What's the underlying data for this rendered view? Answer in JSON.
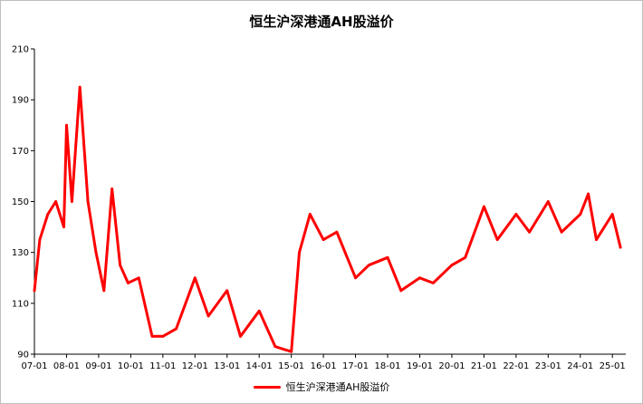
{
  "chart_data": {
    "type": "line",
    "title": "恒生沪深港通AH股溢价",
    "xlabel": "",
    "ylabel": "",
    "ylim": [
      90,
      210
    ],
    "yticks": [
      90,
      110,
      130,
      150,
      170,
      190,
      210
    ],
    "x_start": "07-01",
    "x_end": "25-06",
    "categories": [
      "07-01",
      "08-01",
      "09-01",
      "10-01",
      "11-01",
      "12-01",
      "13-01",
      "14-01",
      "15-01",
      "16-01",
      "17-01",
      "18-01",
      "19-01",
      "20-01",
      "21-01",
      "22-01",
      "23-01",
      "24-01",
      "25-01"
    ],
    "grid": false,
    "legend_position": "bottom",
    "series": [
      {
        "name": "恒生沪深港通AH股溢价",
        "color": "#ff0000",
        "x": [
          "07-01",
          "07-03",
          "07-06",
          "07-09",
          "07-12",
          "08-01",
          "08-03",
          "08-06",
          "08-09",
          "08-12",
          "09-03",
          "09-06",
          "09-09",
          "09-12",
          "10-04",
          "10-09",
          "11-01",
          "11-06",
          "12-01",
          "12-06",
          "13-01",
          "13-06",
          "14-01",
          "14-07",
          "14-10",
          "15-01",
          "15-04",
          "15-08",
          "16-01",
          "16-06",
          "17-01",
          "17-06",
          "18-01",
          "18-06",
          "19-01",
          "19-06",
          "20-01",
          "20-06",
          "21-01",
          "21-06",
          "22-01",
          "22-06",
          "23-01",
          "23-06",
          "24-01",
          "24-04",
          "24-07",
          "25-01",
          "25-04"
        ],
        "values": [
          115,
          135,
          145,
          150,
          140,
          180,
          150,
          195,
          150,
          130,
          115,
          155,
          125,
          118,
          120,
          97,
          97,
          100,
          120,
          105,
          115,
          97,
          107,
          93,
          92,
          91,
          130,
          145,
          135,
          138,
          120,
          125,
          128,
          115,
          120,
          118,
          125,
          128,
          148,
          135,
          145,
          138,
          150,
          138,
          145,
          153,
          135,
          145,
          132
        ]
      }
    ]
  }
}
